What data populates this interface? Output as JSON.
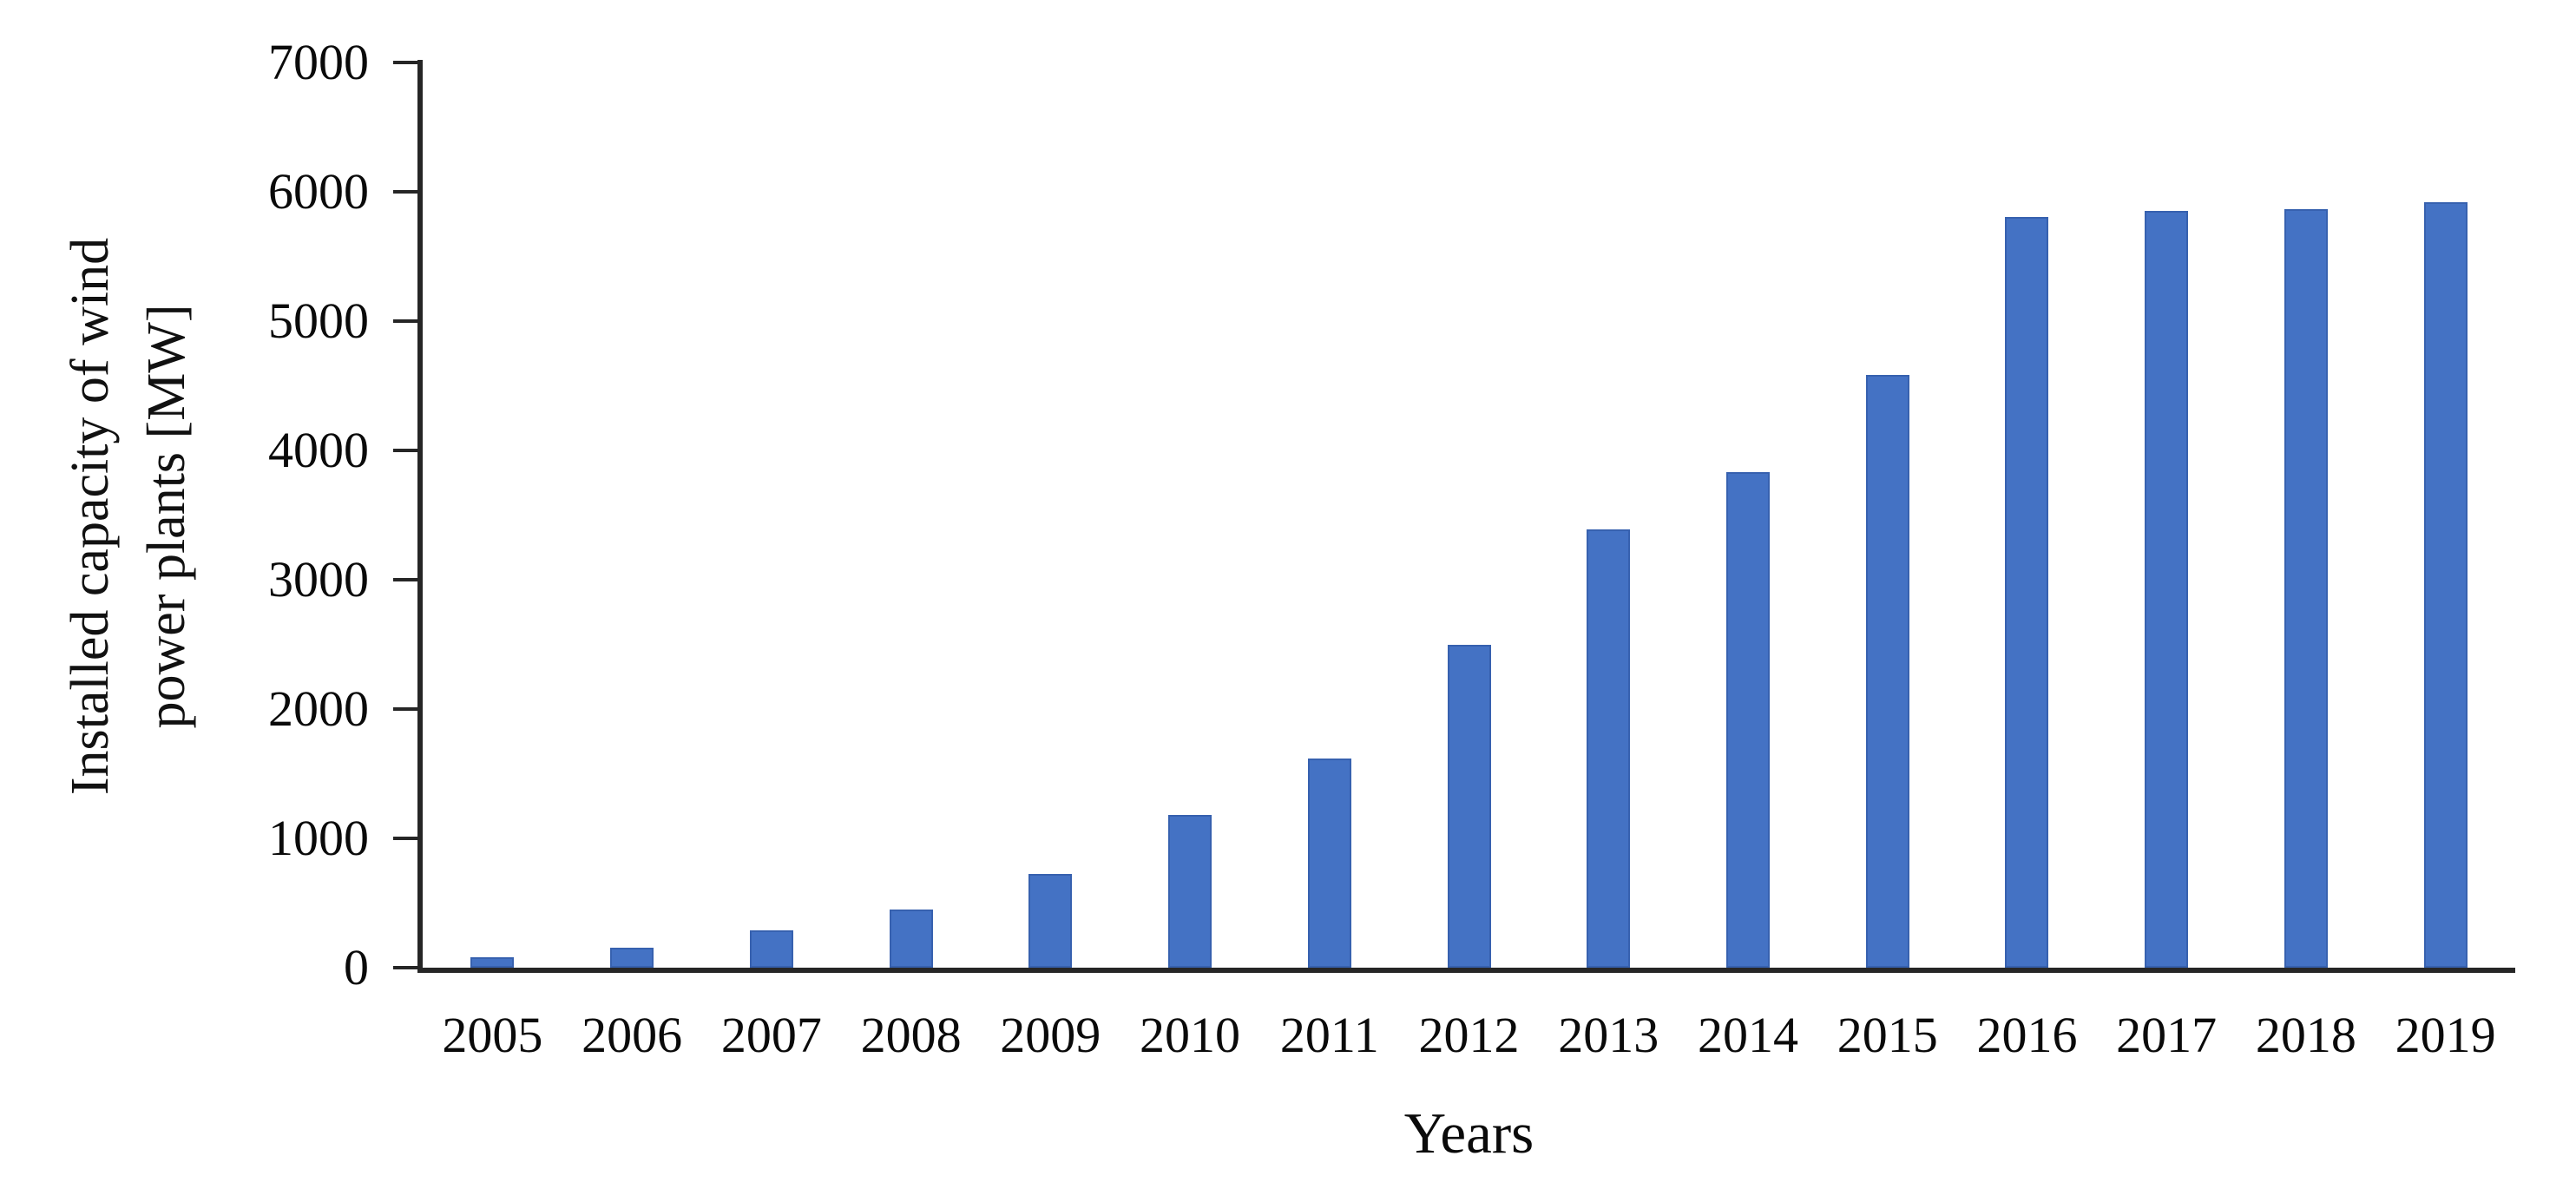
{
  "figure": {
    "y_axis_title_line1": "Installed capacity of wind",
    "y_axis_title_line2": "power plants [MW]",
    "x_axis_title": "Years"
  },
  "chart_data": {
    "type": "bar",
    "title": "",
    "categories": [
      "2005",
      "2006",
      "2007",
      "2008",
      "2009",
      "2010",
      "2011",
      "2012",
      "2013",
      "2014",
      "2015",
      "2016",
      "2017",
      "2018",
      "2019"
    ],
    "values": [
      83,
      153,
      288,
      451,
      725,
      1180,
      1616,
      2497,
      3390,
      3834,
      4582,
      5807,
      5849,
      5864,
      5917
    ],
    "xlabel": "Years",
    "ylabel": "Installed capacity of wind power plants [MW]",
    "ylim": [
      0,
      7000
    ],
    "yticks": [
      0,
      1000,
      2000,
      3000,
      4000,
      5000,
      6000,
      7000
    ],
    "grid": false,
    "legend_position": "none",
    "bar_color": "#4472C4",
    "bar_edge_color": "#2E549E",
    "axis_color": "#262626",
    "text_color": "#0A0A0A"
  }
}
